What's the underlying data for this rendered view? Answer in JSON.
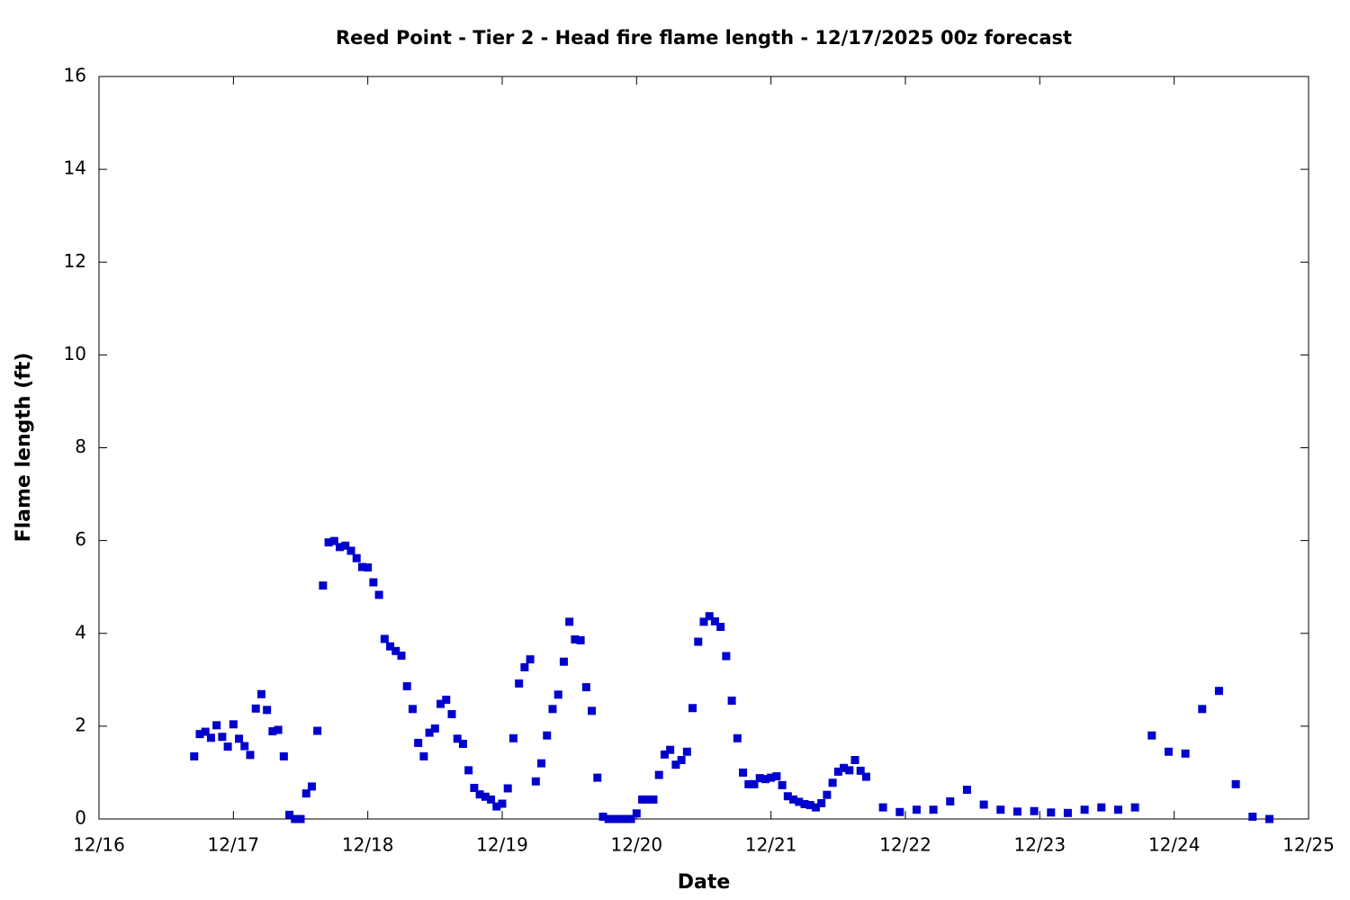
{
  "chart_data": {
    "type": "scatter",
    "title": "Reed Point - Tier 2 - Head fire flame length - 12/17/2025 00z forecast",
    "xlabel": "Date",
    "ylabel": "Flame length (ft)",
    "color": "#0000cc",
    "x": [
      "12/16 17:00",
      "12/16 18:00",
      "12/16 19:00",
      "12/16 20:00",
      "12/16 21:00",
      "12/16 22:00",
      "12/16 23:00",
      "12/17 00:00",
      "12/17 01:00",
      "12/17 02:00",
      "12/17 03:00",
      "12/17 04:00",
      "12/17 05:00",
      "12/17 06:00",
      "12/17 07:00",
      "12/17 08:00",
      "12/17 09:00",
      "12/17 10:00",
      "12/17 11:00",
      "12/17 12:00",
      "12/17 13:00",
      "12/17 14:00",
      "12/17 15:00",
      "12/17 16:00",
      "12/17 17:00",
      "12/17 18:00",
      "12/17 19:00",
      "12/17 20:00",
      "12/17 21:00",
      "12/17 22:00",
      "12/17 23:00",
      "12/18 00:00",
      "12/18 01:00",
      "12/18 02:00",
      "12/18 03:00",
      "12/18 04:00",
      "12/18 05:00",
      "12/18 06:00",
      "12/18 07:00",
      "12/18 08:00",
      "12/18 09:00",
      "12/18 10:00",
      "12/18 11:00",
      "12/18 12:00",
      "12/18 13:00",
      "12/18 14:00",
      "12/18 15:00",
      "12/18 16:00",
      "12/18 17:00",
      "12/18 18:00",
      "12/18 19:00",
      "12/18 20:00",
      "12/18 21:00",
      "12/18 22:00",
      "12/18 23:00",
      "12/19 00:00",
      "12/19 01:00",
      "12/19 02:00",
      "12/19 03:00",
      "12/19 04:00",
      "12/19 05:00",
      "12/19 06:00",
      "12/19 07:00",
      "12/19 08:00",
      "12/19 09:00",
      "12/19 10:00",
      "12/19 11:00",
      "12/19 12:00",
      "12/19 13:00",
      "12/19 14:00",
      "12/19 15:00",
      "12/19 16:00",
      "12/19 17:00",
      "12/19 18:00",
      "12/19 19:00",
      "12/19 20:00",
      "12/19 21:00",
      "12/19 22:00",
      "12/19 23:00",
      "12/20 00:00",
      "12/20 01:00",
      "12/20 02:00",
      "12/20 03:00",
      "12/20 04:00",
      "12/20 05:00",
      "12/20 06:00",
      "12/20 07:00",
      "12/20 08:00",
      "12/20 09:00",
      "12/20 10:00",
      "12/20 11:00",
      "12/20 12:00",
      "12/20 13:00",
      "12/20 14:00",
      "12/20 15:00",
      "12/20 16:00",
      "12/20 17:00",
      "12/20 18:00",
      "12/20 19:00",
      "12/20 20:00",
      "12/20 21:00",
      "12/20 22:00",
      "12/20 23:00",
      "12/21 00:00",
      "12/21 01:00",
      "12/21 02:00",
      "12/21 03:00",
      "12/21 04:00",
      "12/21 05:00",
      "12/21 06:00",
      "12/21 07:00",
      "12/21 08:00",
      "12/21 09:00",
      "12/21 10:00",
      "12/21 11:00",
      "12/21 12:00",
      "12/21 13:00",
      "12/21 14:00",
      "12/21 15:00",
      "12/21 16:00",
      "12/21 17:00",
      "12/21 20:00",
      "12/21 23:00",
      "12/22 02:00",
      "12/22 05:00",
      "12/22 08:00",
      "12/22 11:00",
      "12/22 14:00",
      "12/22 17:00",
      "12/22 20:00",
      "12/22 23:00",
      "12/23 02:00",
      "12/23 05:00",
      "12/23 08:00",
      "12/23 11:00",
      "12/23 14:00",
      "12/23 17:00",
      "12/23 20:00",
      "12/23 23:00",
      "12/24 02:00",
      "12/24 05:00",
      "12/24 08:00",
      "12/24 11:00",
      "12/24 14:00",
      "12/24 17:00"
    ],
    "values": [
      1.35,
      1.83,
      1.88,
      1.75,
      2.02,
      1.77,
      1.56,
      2.04,
      1.73,
      1.57,
      1.38,
      2.38,
      2.69,
      2.35,
      1.89,
      1.92,
      1.35,
      0.09,
      0,
      0,
      0.55,
      0.7,
      1.9,
      5.03,
      5.96,
      5.99,
      5.86,
      5.89,
      5.78,
      5.62,
      5.43,
      5.42,
      5.1,
      4.83,
      3.88,
      3.72,
      3.62,
      3.52,
      2.86,
      2.37,
      1.64,
      1.35,
      1.86,
      1.95,
      2.48,
      2.57,
      2.26,
      1.73,
      1.62,
      1.05,
      0.67,
      0.53,
      0.48,
      0.42,
      0.27,
      0.33,
      0.66,
      1.74,
      2.92,
      3.27,
      3.44,
      0.81,
      1.2,
      1.8,
      2.37,
      2.68,
      3.39,
      4.25,
      3.87,
      3.85,
      2.84,
      2.33,
      0.89,
      0.05,
      0,
      0,
      0,
      0,
      0,
      0.12,
      0.42,
      0.42,
      0.42,
      0.95,
      1.39,
      1.49,
      1.17,
      1.27,
      1.45,
      2.39,
      3.82,
      4.25,
      4.37,
      4.26,
      4.14,
      3.51,
      2.55,
      1.74,
      1.0,
      0.75,
      0.75,
      0.88,
      0.86,
      0.89,
      0.92,
      0.73,
      0.49,
      0.42,
      0.37,
      0.32,
      0.3,
      0.25,
      0.34,
      0.52,
      0.78,
      1.02,
      1.1,
      1.05,
      1.27,
      1.04,
      0.91,
      0.25,
      0.15,
      0.2,
      0.2,
      0.38,
      0.63,
      0.31,
      0.2,
      0.16,
      0.17,
      0.14,
      0.13,
      0.2,
      0.25,
      0.2,
      0.25,
      1.8,
      1.45,
      1.41,
      2.37,
      2.76,
      0.75,
      0.05,
      0
    ],
    "xlim": [
      "12/16",
      "12/25"
    ],
    "xticks": [
      "12/16",
      "12/17",
      "12/18",
      "12/19",
      "12/20",
      "12/21",
      "12/22",
      "12/23",
      "12/24",
      "12/25"
    ],
    "ylim": [
      0,
      16
    ],
    "yticks": [
      0,
      2,
      4,
      6,
      8,
      10,
      12,
      14,
      16
    ],
    "grid": false
  }
}
